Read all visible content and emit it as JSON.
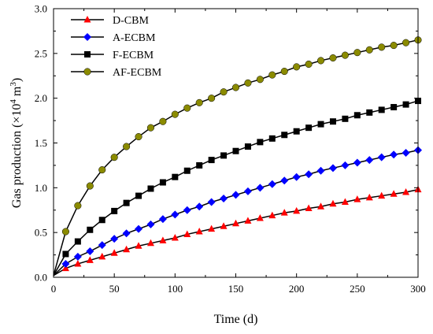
{
  "chart_data": {
    "type": "line",
    "xlabel": "Time (d)",
    "ylabel": {
      "prefix": "Gas production (×10",
      "exp1": "4",
      "mid": " m",
      "exp2": "3",
      "suffix": ")"
    },
    "xlim": [
      0,
      300
    ],
    "ylim": [
      0,
      3.0
    ],
    "xticks": [
      "0",
      "50",
      "100",
      "150",
      "200",
      "250",
      "300"
    ],
    "yticks": [
      "0.0",
      "0.5",
      "1.0",
      "1.5",
      "2.0",
      "2.5",
      "3.0"
    ],
    "grid": false,
    "legend_position": "top-left",
    "x": [
      0,
      10,
      20,
      30,
      40,
      50,
      60,
      70,
      80,
      90,
      100,
      110,
      120,
      130,
      140,
      150,
      160,
      170,
      180,
      190,
      200,
      210,
      220,
      230,
      240,
      250,
      260,
      270,
      280,
      290,
      300
    ],
    "series": [
      {
        "name": "D-CBM",
        "color": "#ff0000",
        "marker": "triangle",
        "values": [
          0.02,
          0.1,
          0.15,
          0.19,
          0.23,
          0.27,
          0.31,
          0.35,
          0.38,
          0.41,
          0.44,
          0.48,
          0.51,
          0.54,
          0.57,
          0.6,
          0.63,
          0.66,
          0.69,
          0.72,
          0.74,
          0.77,
          0.79,
          0.82,
          0.84,
          0.87,
          0.89,
          0.91,
          0.93,
          0.95,
          0.98
        ]
      },
      {
        "name": "A-ECBM",
        "color": "#0000ff",
        "marker": "diamond",
        "values": [
          0.02,
          0.15,
          0.23,
          0.29,
          0.36,
          0.43,
          0.49,
          0.54,
          0.59,
          0.65,
          0.7,
          0.75,
          0.79,
          0.84,
          0.88,
          0.92,
          0.96,
          1.0,
          1.04,
          1.08,
          1.12,
          1.15,
          1.19,
          1.22,
          1.25,
          1.28,
          1.31,
          1.34,
          1.37,
          1.39,
          1.42
        ]
      },
      {
        "name": "F-ECBM",
        "color": "#000000",
        "marker": "square",
        "values": [
          0.02,
          0.26,
          0.4,
          0.53,
          0.64,
          0.74,
          0.83,
          0.91,
          0.99,
          1.06,
          1.12,
          1.19,
          1.25,
          1.31,
          1.36,
          1.41,
          1.46,
          1.51,
          1.55,
          1.59,
          1.63,
          1.67,
          1.71,
          1.74,
          1.77,
          1.81,
          1.84,
          1.87,
          1.9,
          1.93,
          1.97
        ]
      },
      {
        "name": "AF-ECBM",
        "color": "#8b8b00",
        "marker": "circle",
        "values": [
          0.02,
          0.51,
          0.8,
          1.02,
          1.2,
          1.34,
          1.46,
          1.57,
          1.67,
          1.74,
          1.82,
          1.89,
          1.95,
          2.0,
          2.07,
          2.12,
          2.17,
          2.21,
          2.26,
          2.3,
          2.35,
          2.38,
          2.42,
          2.45,
          2.48,
          2.51,
          2.54,
          2.57,
          2.59,
          2.62,
          2.65
        ]
      }
    ]
  }
}
